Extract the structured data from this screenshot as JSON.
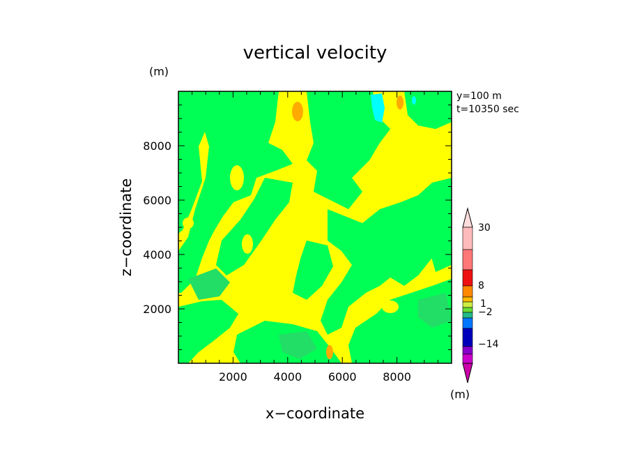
{
  "chart_data": {
    "type": "heatmap",
    "title": "vertical velocity",
    "xlabel": "x−coordinate",
    "ylabel": "z−coordinate",
    "y_unit": "(m)",
    "colorbar_unit": "(m)",
    "annotations": [
      "y=100 m",
      "t=10350 sec"
    ],
    "xlim": [
      0,
      10000
    ],
    "ylim": [
      0,
      10000
    ],
    "x_ticks": [
      2000,
      4000,
      6000,
      8000
    ],
    "y_ticks": [
      2000,
      4000,
      6000,
      8000
    ],
    "x_tick_labels": [
      "2000",
      "4000",
      "6000",
      "8000"
    ],
    "y_tick_labels": [
      "2000",
      "4000",
      "6000",
      "8000"
    ],
    "colorbar": {
      "labels": [
        "30",
        "8",
        "1",
        "−2",
        "−14"
      ],
      "colors": [
        "#ffbbbb",
        "#ff7777",
        "#ee1111",
        "#ff8800",
        "#ffbb00",
        "#ccee44",
        "#66dd33",
        "#22bb88",
        "#0077ff",
        "#0000bb",
        "#8800cc",
        "#cc00cc"
      ]
    },
    "field_colors": {
      "weak_positive": "#ffff00",
      "weak_negative": "#00ff55",
      "mid_negative": "#22dd66",
      "moderate_positive": "#ffaa00",
      "moderate_negative": "#00ffff"
    }
  }
}
